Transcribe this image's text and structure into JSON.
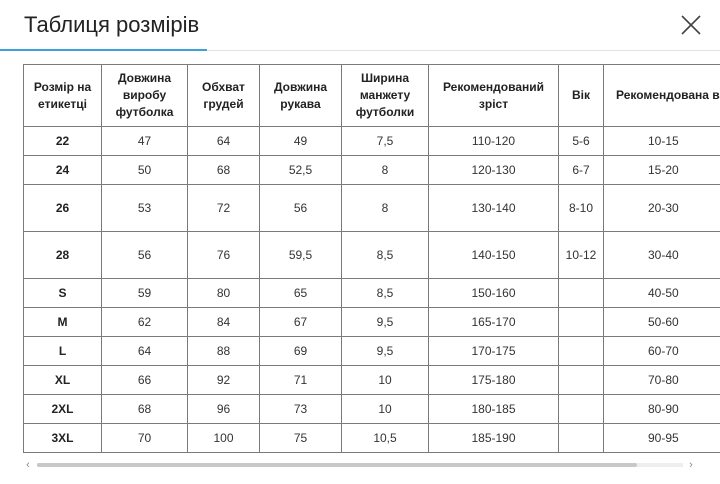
{
  "modal": {
    "title": "Таблиця розмірів",
    "close_icon": "close-icon"
  },
  "table": {
    "headers": [
      "Розмір на етикетці",
      "Довжина виробу футболка",
      "Обхват грудей",
      "Довжина рукава",
      "Ширина манжету футболки",
      "Рекомендований зріст",
      "Вік",
      "Рекомендована вага"
    ],
    "rows": [
      {
        "size": "22",
        "length": "47",
        "chest": "64",
        "sleeve": "49",
        "cuff": "7,5",
        "height": "110-120",
        "age": "5-6",
        "weight": "10-15"
      },
      {
        "size": "24",
        "length": "50",
        "chest": "68",
        "sleeve": "52,5",
        "cuff": "8",
        "height": "120-130",
        "age": "6-7",
        "weight": "15-20"
      },
      {
        "size": "26",
        "length": "53",
        "chest": "72",
        "sleeve": "56",
        "cuff": "8",
        "height": "130-140",
        "age": "8-10",
        "weight": "20-30"
      },
      {
        "size": "28",
        "length": "56",
        "chest": "76",
        "sleeve": "59,5",
        "cuff": "8,5",
        "height": "140-150",
        "age": "10-12",
        "weight": "30-40"
      },
      {
        "size": "S",
        "length": "59",
        "chest": "80",
        "sleeve": "65",
        "cuff": "8,5",
        "height": "150-160",
        "age": "",
        "weight": "40-50"
      },
      {
        "size": "M",
        "length": "62",
        "chest": "84",
        "sleeve": "67",
        "cuff": "9,5",
        "height": "165-170",
        "age": "",
        "weight": "50-60"
      },
      {
        "size": "L",
        "length": "64",
        "chest": "88",
        "sleeve": "69",
        "cuff": "9,5",
        "height": "170-175",
        "age": "",
        "weight": "60-70"
      },
      {
        "size": "XL",
        "length": "66",
        "chest": "92",
        "sleeve": "71",
        "cuff": "10",
        "height": "175-180",
        "age": "",
        "weight": "70-80"
      },
      {
        "size": "2XL",
        "length": "68",
        "chest": "96",
        "sleeve": "73",
        "cuff": "10",
        "height": "180-185",
        "age": "",
        "weight": "80-90"
      },
      {
        "size": "3XL",
        "length": "70",
        "chest": "100",
        "sleeve": "75",
        "cuff": "10,5",
        "height": "185-190",
        "age": "",
        "weight": "90-95"
      }
    ]
  },
  "scrollbar": {
    "left_arrow": "‹",
    "right_arrow": "›"
  },
  "colors": {
    "accent": "#3ea0d8",
    "border": "#7a7a7a"
  }
}
